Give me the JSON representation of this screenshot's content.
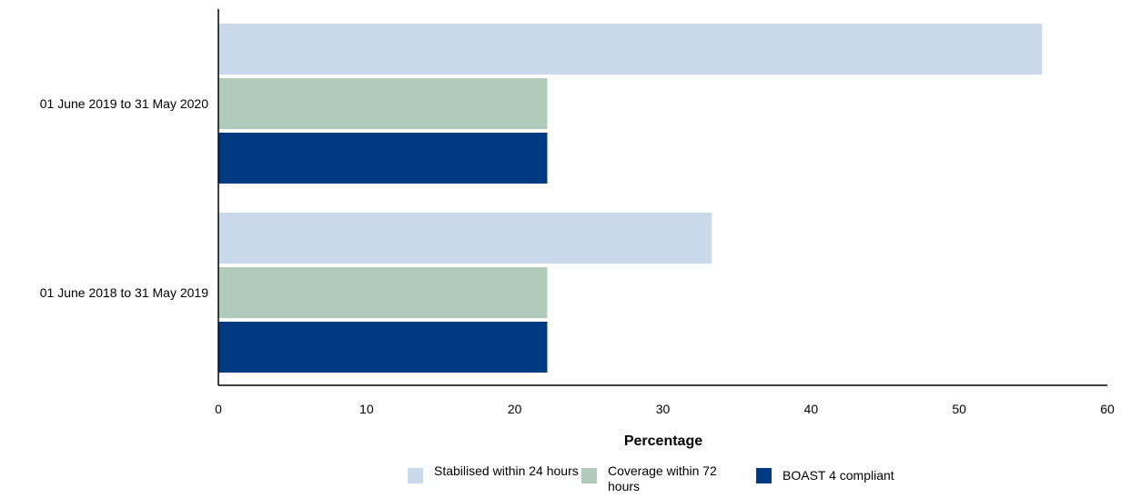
{
  "chart_data": {
    "type": "bar",
    "orientation": "horizontal",
    "categories": [
      "01 June 2019 to 31 May 2020",
      "01 June 2018 to 31 May 2019"
    ],
    "series": [
      {
        "name": "Stabilised within 24 hours",
        "color": "#c9d8ea",
        "values": [
          55.6,
          33.3
        ]
      },
      {
        "name": "Coverage within 72 hours",
        "color": "#b1cbbb",
        "values": [
          22.2,
          22.2
        ]
      },
      {
        "name": "BOAST 4 compliant",
        "color": "#003a82",
        "values": [
          22.2,
          22.2
        ]
      }
    ],
    "title": "",
    "xlabel": "Percentage",
    "ylabel": "",
    "xlim": [
      0,
      60
    ],
    "xticks": [
      "0",
      "10",
      "20",
      "30",
      "40",
      "50",
      "60"
    ],
    "grid": false,
    "legend_position": "bottom"
  },
  "legend": {
    "items": [
      {
        "label": "Stabilised within 24 hours",
        "color": "#c9d8ea"
      },
      {
        "label": "Coverage within 72 hours",
        "color": "#b1cbbb"
      },
      {
        "label": "BOAST 4 compliant",
        "color": "#003a82"
      }
    ]
  }
}
